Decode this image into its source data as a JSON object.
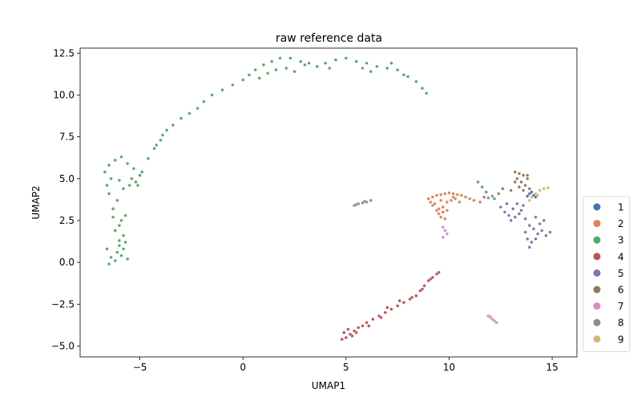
{
  "chart_data": {
    "type": "scatter",
    "title": "raw reference data",
    "xlabel": "UMAP1",
    "ylabel": "UMAP2",
    "xlim": [
      -7.9,
      16.2
    ],
    "ylim": [
      -5.65,
      12.8
    ],
    "xticks": [
      -5,
      0,
      5,
      10,
      15
    ],
    "xtick_labels": [
      "−5",
      "0",
      "5",
      "10",
      "15"
    ],
    "yticks": [
      -5.0,
      -2.5,
      0.0,
      2.5,
      5.0,
      7.5,
      10.0,
      12.5
    ],
    "ytick_labels": [
      "−5.0",
      "−2.5",
      "0.0",
      "2.5",
      "5.0",
      "7.5",
      "10.0",
      "12.5"
    ],
    "grid": false,
    "legend_position": "right",
    "series": [
      {
        "name": "1",
        "color": "#4c72b0",
        "points": [
          [
            13.9,
            4.1
          ],
          [
            14.1,
            4.0
          ],
          [
            14.2,
            3.9
          ],
          [
            13.8,
            3.95
          ],
          [
            14.0,
            4.2
          ]
        ]
      },
      {
        "name": "2",
        "color": "#dd8452",
        "points": [
          [
            9.0,
            3.8
          ],
          [
            9.2,
            3.9
          ],
          [
            9.4,
            4.0
          ],
          [
            9.6,
            4.05
          ],
          [
            9.8,
            4.1
          ],
          [
            10.0,
            4.15
          ],
          [
            10.2,
            4.1
          ],
          [
            10.4,
            4.05
          ],
          [
            10.6,
            4.0
          ],
          [
            10.8,
            3.9
          ],
          [
            11.0,
            3.8
          ],
          [
            11.2,
            3.7
          ],
          [
            11.5,
            3.6
          ],
          [
            9.3,
            3.5
          ],
          [
            9.5,
            3.2
          ],
          [
            9.7,
            3.0
          ],
          [
            9.6,
            2.7
          ],
          [
            9.8,
            2.6
          ],
          [
            9.5,
            2.9
          ],
          [
            9.4,
            3.1
          ],
          [
            9.2,
            3.4
          ],
          [
            9.9,
            3.6
          ],
          [
            10.1,
            3.7
          ],
          [
            10.3,
            3.8
          ],
          [
            10.5,
            3.6
          ],
          [
            9.6,
            3.7
          ],
          [
            9.7,
            3.3
          ],
          [
            9.9,
            3.1
          ],
          [
            10.2,
            3.9
          ],
          [
            9.1,
            3.6
          ]
        ]
      },
      {
        "name": "3",
        "color": "#55a868",
        "points": [
          [
            -6.6,
            0.8
          ],
          [
            -6.4,
            0.3
          ],
          [
            -6.2,
            0.1
          ],
          [
            -5.9,
            0.4
          ],
          [
            -5.6,
            0.2
          ],
          [
            -6.5,
            -0.1
          ],
          [
            -6.1,
            0.6
          ],
          [
            -6.0,
            1.3
          ],
          [
            -5.8,
            1.6
          ],
          [
            -5.7,
            1.2
          ],
          [
            -6.2,
            1.9
          ],
          [
            -5.9,
            2.5
          ],
          [
            -5.7,
            2.8
          ],
          [
            -6.0,
            2.2
          ],
          [
            -6.3,
            3.2
          ],
          [
            -6.1,
            3.7
          ],
          [
            -6.5,
            4.1
          ],
          [
            -6.6,
            4.6
          ],
          [
            -6.4,
            5.0
          ],
          [
            -6.7,
            5.4
          ],
          [
            -6.5,
            5.8
          ],
          [
            -6.2,
            6.1
          ],
          [
            -5.9,
            6.3
          ],
          [
            -5.6,
            5.9
          ],
          [
            -5.3,
            5.6
          ],
          [
            -5.0,
            5.2
          ],
          [
            -5.2,
            4.8
          ],
          [
            -5.5,
            4.6
          ],
          [
            -5.8,
            4.4
          ],
          [
            -6.0,
            4.9
          ],
          [
            -5.4,
            5.0
          ],
          [
            -4.9,
            5.4
          ],
          [
            -4.6,
            6.2
          ],
          [
            -4.3,
            6.8
          ],
          [
            -4.0,
            7.3
          ],
          [
            -3.7,
            7.9
          ],
          [
            -3.4,
            8.2
          ],
          [
            -3.0,
            8.6
          ],
          [
            -2.6,
            8.9
          ],
          [
            -2.2,
            9.2
          ],
          [
            -1.9,
            9.6
          ],
          [
            -1.5,
            10.0
          ],
          [
            -1.0,
            10.3
          ],
          [
            -0.5,
            10.6
          ],
          [
            0.0,
            10.9
          ],
          [
            0.3,
            11.2
          ],
          [
            0.6,
            11.5
          ],
          [
            1.0,
            11.8
          ],
          [
            1.4,
            12.0
          ],
          [
            1.8,
            12.2
          ],
          [
            2.3,
            12.2
          ],
          [
            2.8,
            12.0
          ],
          [
            3.2,
            11.9
          ],
          [
            3.6,
            11.7
          ],
          [
            4.0,
            11.9
          ],
          [
            4.5,
            12.1
          ],
          [
            5.0,
            12.2
          ],
          [
            5.5,
            12.0
          ],
          [
            6.0,
            11.9
          ],
          [
            6.5,
            11.7
          ],
          [
            7.0,
            11.6
          ],
          [
            7.5,
            11.5
          ],
          [
            8.0,
            11.1
          ],
          [
            8.4,
            10.8
          ],
          [
            8.7,
            10.4
          ],
          [
            8.9,
            10.1
          ],
          [
            0.8,
            11.0
          ],
          [
            1.2,
            11.3
          ],
          [
            1.6,
            11.5
          ],
          [
            2.1,
            11.6
          ],
          [
            2.5,
            11.4
          ],
          [
            5.8,
            11.6
          ],
          [
            6.2,
            11.4
          ],
          [
            7.2,
            11.9
          ],
          [
            7.8,
            11.2
          ],
          [
            4.2,
            11.6
          ],
          [
            3.0,
            11.8
          ],
          [
            -4.2,
            7.0
          ],
          [
            -3.9,
            7.6
          ],
          [
            -5.1,
            4.6
          ],
          [
            -6.3,
            2.7
          ],
          [
            -5.8,
            0.8
          ],
          [
            -6.0,
            1.0
          ],
          [
            11.4,
            4.8
          ],
          [
            11.6,
            4.5
          ],
          [
            11.8,
            4.2
          ],
          [
            12.4,
            4.1
          ],
          [
            12.6,
            4.4
          ],
          [
            12.2,
            3.8
          ]
        ]
      },
      {
        "name": "4",
        "color": "#c44e52",
        "points": [
          [
            4.8,
            -4.6
          ],
          [
            5.0,
            -4.5
          ],
          [
            5.2,
            -4.3
          ],
          [
            5.4,
            -4.1
          ],
          [
            5.6,
            -3.9
          ],
          [
            5.8,
            -3.8
          ],
          [
            6.0,
            -3.6
          ],
          [
            6.3,
            -3.4
          ],
          [
            6.6,
            -3.2
          ],
          [
            6.9,
            -3.0
          ],
          [
            7.2,
            -2.8
          ],
          [
            7.5,
            -2.6
          ],
          [
            7.8,
            -2.4
          ],
          [
            8.1,
            -2.2
          ],
          [
            8.4,
            -2.0
          ],
          [
            8.6,
            -1.7
          ],
          [
            8.8,
            -1.4
          ],
          [
            9.0,
            -1.1
          ],
          [
            9.2,
            -0.9
          ],
          [
            9.4,
            -0.7
          ],
          [
            9.5,
            -0.6
          ],
          [
            5.1,
            -4.0
          ],
          [
            5.3,
            -4.4
          ],
          [
            4.9,
            -4.2
          ],
          [
            5.5,
            -4.2
          ],
          [
            6.1,
            -3.8
          ],
          [
            6.7,
            -3.3
          ],
          [
            7.0,
            -2.7
          ],
          [
            7.6,
            -2.3
          ],
          [
            8.2,
            -2.1
          ],
          [
            8.7,
            -1.6
          ],
          [
            9.1,
            -1.0
          ]
        ]
      },
      {
        "name": "5",
        "color": "#8172b2",
        "points": [
          [
            12.5,
            3.3
          ],
          [
            12.7,
            3.0
          ],
          [
            12.9,
            2.8
          ],
          [
            13.1,
            3.2
          ],
          [
            13.3,
            3.5
          ],
          [
            13.5,
            3.1
          ],
          [
            13.2,
            2.7
          ],
          [
            13.0,
            2.5
          ],
          [
            13.7,
            2.6
          ],
          [
            13.9,
            2.2
          ],
          [
            14.1,
            2.0
          ],
          [
            14.3,
            1.7
          ],
          [
            14.5,
            1.9
          ],
          [
            14.7,
            1.6
          ],
          [
            14.9,
            1.8
          ],
          [
            13.8,
            1.4
          ],
          [
            14.0,
            1.2
          ],
          [
            13.9,
            0.9
          ],
          [
            14.2,
            1.4
          ],
          [
            14.4,
            2.3
          ],
          [
            13.6,
            3.4
          ],
          [
            13.4,
            2.9
          ],
          [
            12.8,
            3.5
          ],
          [
            13.0,
            4.3
          ],
          [
            12.6,
            4.4
          ],
          [
            14.6,
            2.5
          ],
          [
            14.2,
            2.7
          ],
          [
            13.7,
            1.8
          ]
        ]
      },
      {
        "name": "6",
        "color": "#937860",
        "points": [
          [
            13.2,
            5.4
          ],
          [
            13.4,
            5.3
          ],
          [
            13.6,
            5.2
          ],
          [
            13.8,
            5.0
          ],
          [
            13.3,
            5.0
          ],
          [
            13.5,
            4.8
          ],
          [
            13.7,
            4.6
          ],
          [
            13.9,
            4.4
          ],
          [
            13.4,
            4.5
          ],
          [
            13.6,
            4.3
          ],
          [
            13.2,
            4.8
          ],
          [
            13.8,
            5.2
          ]
        ]
      },
      {
        "name": "7",
        "color": "#da8bc3",
        "points": [
          [
            9.7,
            2.1
          ],
          [
            9.8,
            1.9
          ],
          [
            9.9,
            1.7
          ],
          [
            9.7,
            1.5
          ],
          [
            11.9,
            -3.2
          ],
          [
            12.0,
            -3.3
          ],
          [
            12.1,
            -3.4
          ],
          [
            12.2,
            -3.5
          ],
          [
            12.3,
            -3.6
          ],
          [
            12.0,
            -3.25
          ]
        ]
      },
      {
        "name": "8",
        "color": "#8c8c8c",
        "points": [
          [
            5.4,
            3.4
          ],
          [
            5.6,
            3.5
          ],
          [
            5.8,
            3.55
          ],
          [
            6.0,
            3.6
          ],
          [
            6.2,
            3.7
          ],
          [
            5.5,
            3.45
          ],
          [
            5.9,
            3.65
          ],
          [
            11.7,
            3.9
          ],
          [
            11.9,
            3.85
          ],
          [
            12.1,
            3.95
          ]
        ]
      },
      {
        "name": "9",
        "color": "#ccb974",
        "points": [
          [
            14.2,
            4.1
          ],
          [
            14.4,
            4.3
          ],
          [
            14.6,
            4.4
          ],
          [
            14.8,
            4.45
          ],
          [
            14.0,
            3.9
          ],
          [
            13.9,
            3.7
          ],
          [
            14.3,
            4.0
          ]
        ]
      }
    ]
  }
}
